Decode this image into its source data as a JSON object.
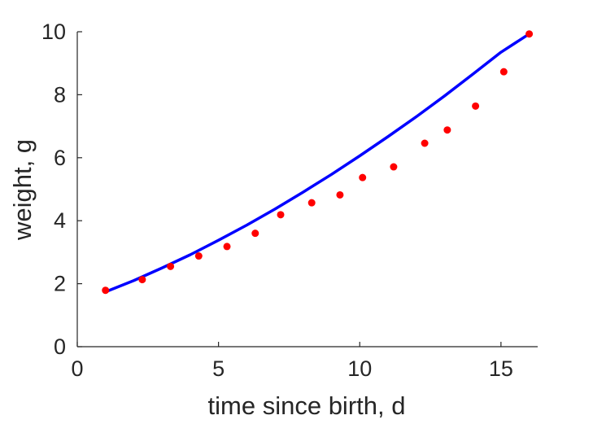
{
  "chart_data": {
    "type": "scatter",
    "title": "",
    "xlabel": "time since birth, d",
    "ylabel": "weight, g",
    "xlim": [
      0,
      16.3
    ],
    "ylim": [
      0,
      10
    ],
    "xticks": [
      0,
      5,
      10,
      15
    ],
    "yticks": [
      0,
      2,
      4,
      6,
      8,
      10
    ],
    "grid": false,
    "box": false,
    "colors": {
      "points": "#ff0000",
      "fit_line": "#0000ff",
      "axes": "#262626"
    },
    "series": [
      {
        "type": "scatter",
        "x": [
          1.0,
          2.3,
          3.3,
          4.3,
          5.3,
          6.3,
          7.2,
          8.3,
          9.3,
          10.1,
          11.2,
          12.3,
          13.1,
          14.1,
          15.1,
          16.0
        ],
        "y": [
          1.79,
          2.13,
          2.55,
          2.88,
          3.18,
          3.6,
          4.19,
          4.57,
          4.82,
          5.37,
          5.71,
          6.46,
          6.88,
          7.64,
          8.73,
          9.93
        ]
      },
      {
        "type": "line",
        "x": [
          1,
          2,
          3,
          4,
          5,
          6,
          7,
          8,
          9,
          10,
          11,
          12,
          13,
          14,
          15,
          16
        ],
        "y": [
          1.74,
          2.1,
          2.5,
          2.92,
          3.38,
          3.86,
          4.37,
          4.91,
          5.47,
          6.06,
          6.67,
          7.3,
          7.96,
          8.65,
          9.35,
          9.93
        ]
      }
    ]
  }
}
